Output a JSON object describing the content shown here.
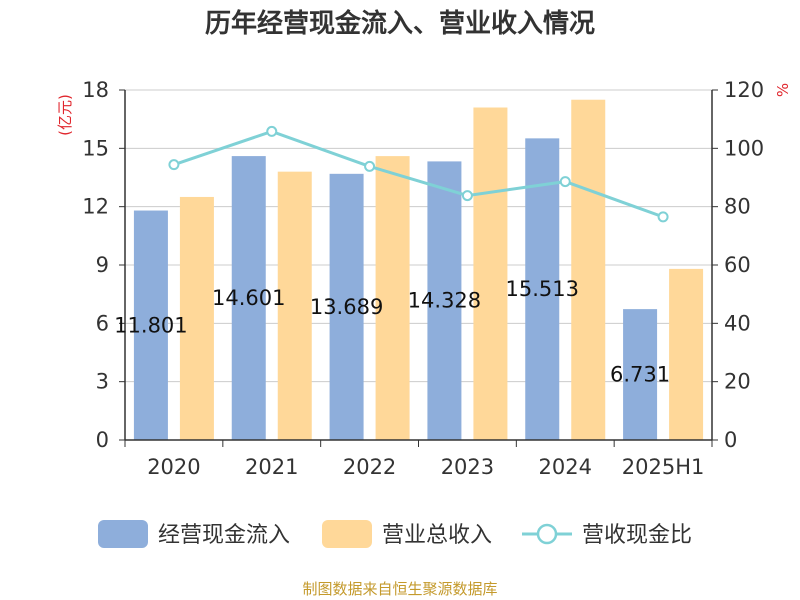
{
  "chart_data": {
    "type": "bar",
    "title": "历年经营现金流入、营业收入情况",
    "categories": [
      "2020",
      "2021",
      "2022",
      "2023",
      "2024",
      "2025H1"
    ],
    "y_left_label": "(亿元)",
    "y_right_label": "%",
    "ylim_left": [
      0,
      18
    ],
    "yticks_left": [
      "0",
      "3",
      "6",
      "9",
      "12",
      "15",
      "18"
    ],
    "ylim_right": [
      0,
      120
    ],
    "yticks_right": [
      "0",
      "20",
      "40",
      "60",
      "80",
      "100",
      "120"
    ],
    "grid": true,
    "legend_position": "bottom",
    "series": [
      {
        "name": "经营现金流入",
        "kind": "bar",
        "axis": "left",
        "color": "#8eaedb",
        "values": [
          11.801,
          14.601,
          13.689,
          14.328,
          15.513,
          6.731
        ],
        "labels": [
          "11.801",
          "14.601",
          "13.689",
          "14.328",
          "15.513",
          "6.731"
        ]
      },
      {
        "name": "营业总收入",
        "kind": "bar",
        "axis": "left",
        "color": "#ffd899",
        "values": [
          12.5,
          13.8,
          14.6,
          17.1,
          17.5,
          8.8
        ]
      },
      {
        "name": "营收现金比",
        "kind": "line",
        "axis": "right",
        "color": "#7fd1d6",
        "values": [
          94.4,
          105.8,
          93.8,
          83.8,
          88.6,
          76.5
        ]
      }
    ],
    "source": "制图数据来自恒生聚源数据库"
  }
}
